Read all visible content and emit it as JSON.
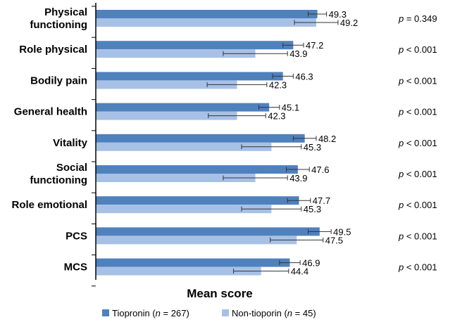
{
  "chart_data": {
    "type": "bar",
    "orientation": "horizontal",
    "xlabel": "Mean score",
    "categories": [
      [
        "Physical",
        "functioning"
      ],
      [
        "Role physical"
      ],
      [
        "Bodily pain"
      ],
      [
        "General health"
      ],
      [
        "Vitality"
      ],
      [
        "Social",
        "functioning"
      ],
      [
        "Role emotional"
      ],
      [
        "PCS"
      ],
      [
        "MCS"
      ]
    ],
    "series": [
      {
        "name": "Tiopronin",
        "n_label": "267",
        "color": "#4f81bd",
        "values": [
          49.3,
          47.2,
          46.3,
          45.1,
          48.2,
          47.6,
          47.7,
          49.5,
          46.9
        ],
        "labels": [
          "49.3",
          "47.2",
          "46.3",
          "45.1",
          "48.2",
          "47.6",
          "47.7",
          "49.5",
          "46.9"
        ],
        "error": [
          0.8,
          0.9,
          0.9,
          0.9,
          1.0,
          1.0,
          1.0,
          1.0,
          0.9
        ]
      },
      {
        "name": "Non-tioporin",
        "n_label": "45",
        "color": "#a7c1e6",
        "values": [
          49.2,
          43.9,
          42.3,
          42.3,
          45.3,
          43.9,
          45.3,
          47.5,
          44.4
        ],
        "labels": [
          "49.2",
          "43.9",
          "42.3",
          "42.3",
          "45.3",
          "43.9",
          "45.3",
          "47.5",
          "44.4"
        ],
        "error": [
          1.9,
          2.8,
          2.6,
          2.5,
          2.6,
          2.8,
          2.6,
          2.3,
          2.4
        ]
      }
    ],
    "p_values": [
      {
        "p": "p",
        "rest": " = 0.349"
      },
      {
        "p": "p",
        "rest": " < 0.001"
      },
      {
        "p": "p",
        "rest": " < 0.001"
      },
      {
        "p": "p",
        "rest": " < 0.001"
      },
      {
        "p": "p",
        "rest": " < 0.001"
      },
      {
        "p": "p",
        "rest": " < 0.001"
      },
      {
        "p": "p",
        "rest": " < 0.001"
      },
      {
        "p": "p",
        "rest": " < 0.001"
      },
      {
        "p": "p",
        "rest": " < 0.001"
      }
    ],
    "xlim": [
      30,
      52
    ],
    "legend": {
      "position": "bottom",
      "n_symbol": "n",
      "open": " (",
      "eq": " = ",
      "close": ")"
    }
  }
}
